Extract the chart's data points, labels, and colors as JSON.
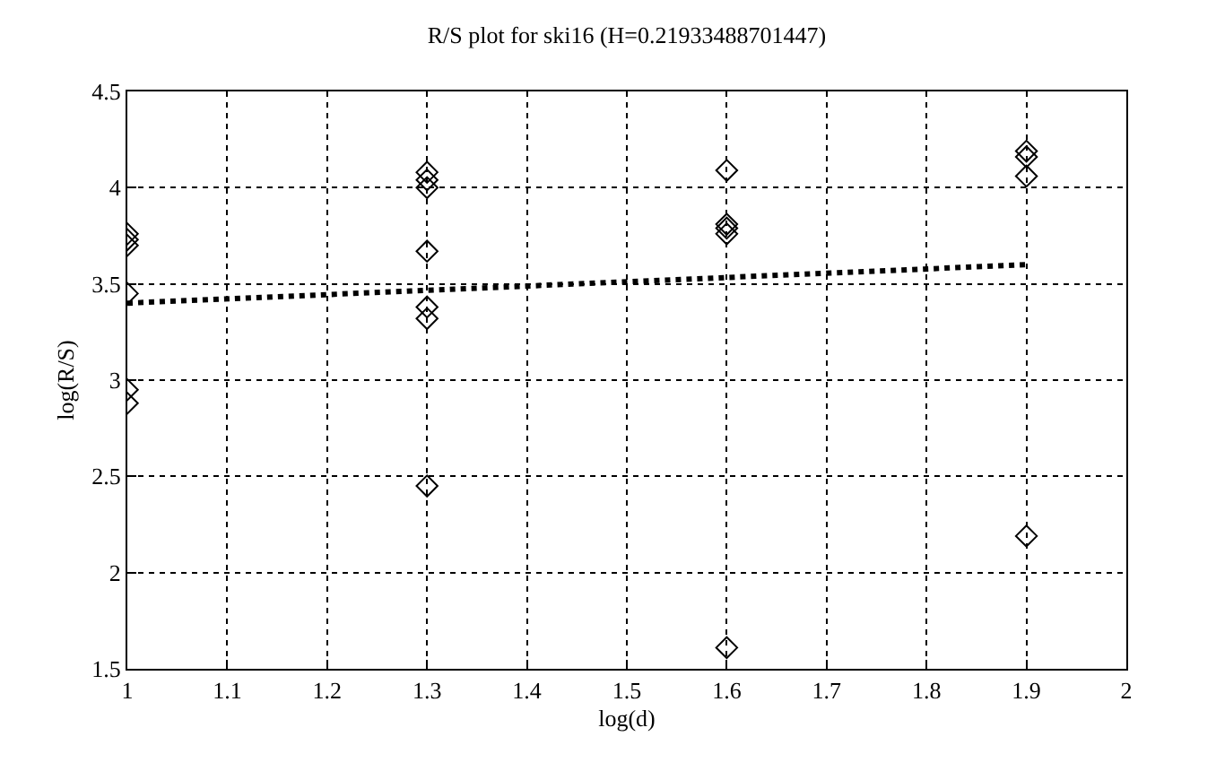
{
  "chart_data": {
    "type": "scatter",
    "title": "R/S plot for ski16 (H=0.21933488701447)",
    "xlabel": "log(d)",
    "ylabel": "log(R/S)",
    "series": [
      {
        "color": "#000000",
        "marker": "diamond",
        "x": [
          1,
          1,
          1,
          1,
          1,
          1,
          1.3,
          1.3,
          1.3,
          1.3,
          1.3,
          1.3,
          1.3,
          1.6,
          1.6,
          1.6,
          1.6,
          1.6,
          1.9,
          1.9,
          1.9,
          1.9
        ],
        "values": [
          3.76,
          3.73,
          3.7,
          3.45,
          2.95,
          2.88,
          4.08,
          4.04,
          4.0,
          3.67,
          3.38,
          3.32,
          2.45,
          4.09,
          3.81,
          3.79,
          3.76,
          1.61,
          4.19,
          4.16,
          4.06,
          2.19
        ]
      },
      {
        "type": "line",
        "color": "#000000",
        "line_style": "dotted",
        "marker": "none",
        "x": [
          1,
          1.9
        ],
        "values": [
          3.4,
          3.6
        ]
      }
    ],
    "xlim": [
      1,
      2
    ],
    "xticks": [
      1,
      1.1,
      1.2,
      1.3,
      1.4,
      1.5,
      1.6,
      1.7,
      1.8,
      1.9,
      2
    ],
    "ylim": [
      1.5,
      4.5
    ],
    "yticks": [
      1.5,
      2,
      2.5,
      3,
      3.5,
      4,
      4.5
    ],
    "grid": true,
    "legend": false
  }
}
